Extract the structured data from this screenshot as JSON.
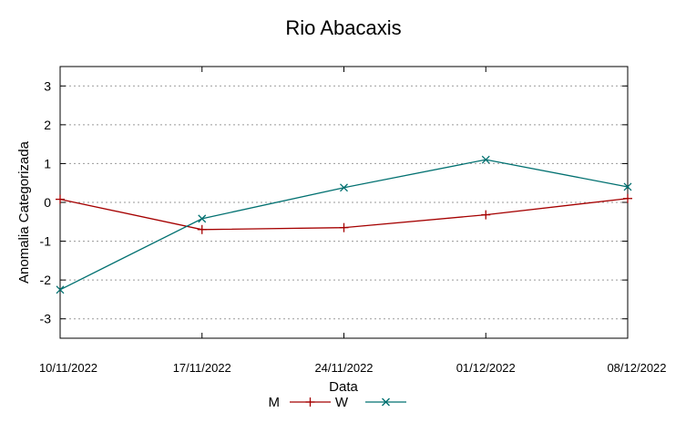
{
  "chart_data": {
    "type": "line",
    "title": "Rio Abacaxis",
    "xlabel": "Data",
    "ylabel": "Anomalia Categorizada",
    "x": [
      "10/11/2022",
      "17/11/2022",
      "24/11/2022",
      "01/12/2022",
      "08/12/2022"
    ],
    "ylim": [
      -3.5,
      3.5
    ],
    "yticks": [
      "3",
      "2",
      "1",
      "0",
      "-1",
      "-2",
      "-3"
    ],
    "grid": true,
    "legend_position": "bottom-center",
    "series": [
      {
        "name": "M",
        "color": "#a50000",
        "marker": "plus",
        "values": [
          0.08,
          -0.7,
          -0.65,
          -0.32,
          0.1
        ]
      },
      {
        "name": "W",
        "color": "#007070",
        "marker": "cross",
        "values": [
          -2.25,
          -0.42,
          0.38,
          1.1,
          0.4
        ]
      }
    ]
  }
}
